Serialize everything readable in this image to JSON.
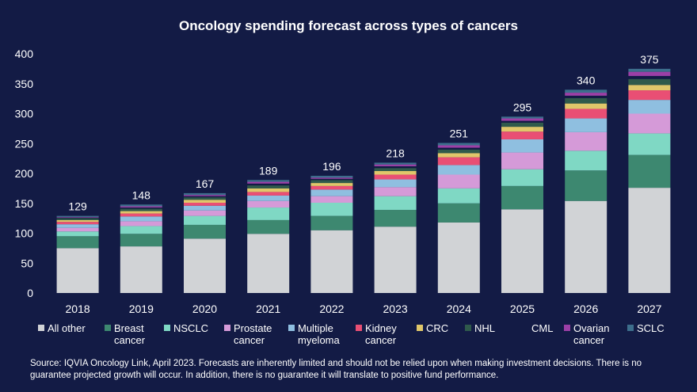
{
  "chart_data": {
    "type": "bar",
    "stacked": true,
    "title": "Oncology spending forecast across types of cancers",
    "xlabel": "",
    "ylabel": "",
    "ylim": [
      0,
      400
    ],
    "yticks": [
      0,
      50,
      100,
      150,
      200,
      250,
      300,
      350,
      400
    ],
    "categories": [
      "2018",
      "2019",
      "2020",
      "2021",
      "2022",
      "2023",
      "2024",
      "2025",
      "2026",
      "2027"
    ],
    "totals": [
      129,
      148,
      167,
      189,
      196,
      218,
      251,
      295,
      340,
      375
    ],
    "series": [
      {
        "name": "All other",
        "legend_lines": [
          "All other"
        ],
        "color": "#d1d3d6",
        "values": [
          75,
          78,
          91,
          99,
          105,
          111,
          118,
          140,
          154,
          176
        ]
      },
      {
        "name": "Breast cancer",
        "legend_lines": [
          "Breast",
          "cancer"
        ],
        "color": "#3d8870",
        "values": [
          20,
          21,
          23,
          23,
          24,
          28,
          32,
          39,
          51,
          55
        ]
      },
      {
        "name": "NSCLC",
        "legend_lines": [
          "NSCLC"
        ],
        "color": "#7fd8c4",
        "values": [
          8,
          13,
          15,
          21,
          22,
          23,
          25,
          28,
          33,
          36
        ]
      },
      {
        "name": "Prostate cancer",
        "legend_lines": [
          "Prostate",
          "cancer"
        ],
        "color": "#d59ad8",
        "values": [
          6,
          8,
          9,
          11,
          11,
          15,
          23,
          28,
          31,
          33
        ]
      },
      {
        "name": "Multiple myeloma",
        "legend_lines": [
          "Multiple",
          "myeloma"
        ],
        "color": "#8fbfe0",
        "values": [
          6,
          8,
          8,
          9,
          11,
          13,
          16,
          22,
          23,
          23
        ]
      },
      {
        "name": "Kidney cancer",
        "legend_lines": [
          "Kidney",
          "cancer"
        ],
        "color": "#e94f74",
        "values": [
          4,
          5,
          5,
          6,
          6,
          8,
          13,
          13,
          16,
          16
        ]
      },
      {
        "name": "CRC",
        "legend_lines": [
          "CRC"
        ],
        "color": "#e0c76a",
        "values": [
          3,
          4,
          5,
          6,
          5,
          6,
          7,
          8,
          9,
          9
        ]
      },
      {
        "name": "NHL",
        "legend_lines": [
          "NHL"
        ],
        "color": "#2f5a4b",
        "values": [
          3,
          4,
          4,
          5,
          5,
          5,
          6,
          7,
          9,
          10
        ]
      },
      {
        "name": "CML",
        "legend_lines": [
          "CML"
        ],
        "color": "#131b45",
        "values": [
          1,
          2,
          2,
          3,
          2,
          3,
          3,
          3,
          4,
          5
        ]
      },
      {
        "name": "Ovarian cancer",
        "legend_lines": [
          "Ovarian",
          "cancer"
        ],
        "color": "#9c3fa6",
        "values": [
          1,
          2,
          2,
          3,
          2,
          3,
          4,
          4,
          5,
          7
        ]
      },
      {
        "name": "SCLC",
        "legend_lines": [
          "SCLC"
        ],
        "color": "#3d6e8c",
        "values": [
          2,
          3,
          3,
          3,
          3,
          3,
          4,
          3,
          5,
          5
        ]
      }
    ]
  },
  "source_note": "Source: IQVIA Oncology Link, April 2023. Forecasts are inherently limited and should not be relied upon when making investment decisions. There is no guarantee projected growth will occur. In addition, there is no guarantee it will translate to positive fund performance."
}
